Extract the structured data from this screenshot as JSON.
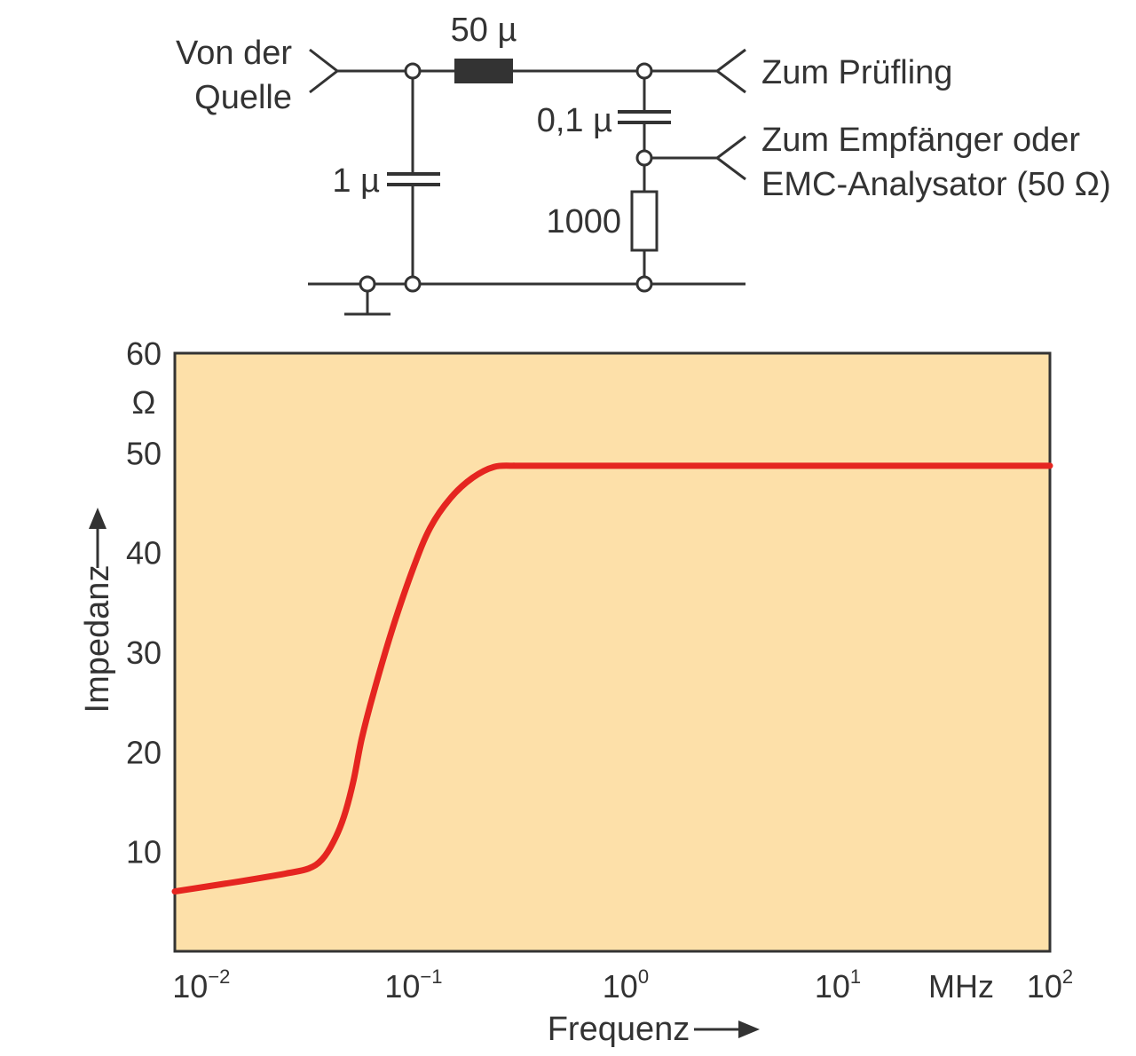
{
  "circuit": {
    "source_label_line1": "Von der",
    "source_label_line2": "Quelle",
    "inductor_label": "50 µ",
    "cap1_label": "1 µ",
    "cap2_label": "0,1 µ",
    "resistor_label": "1000",
    "dut_label": "Zum Prüfling",
    "receiver_label_line1": "Zum Empfänger oder",
    "receiver_label_line2": "EMC-Analysator (50 Ω)"
  },
  "chart_data": {
    "type": "line",
    "xscale": "log",
    "xlim": [
      0.0075,
      100
    ],
    "ylim": [
      0,
      60
    ],
    "xlabel": "Frequenz",
    "xunit": "MHz",
    "ylabel": "Impedanz",
    "yunit": "Ω",
    "yticks": [
      10,
      20,
      30,
      40,
      50,
      60
    ],
    "xticks": [
      {
        "value": 0.01,
        "base": "10",
        "exp": "−2"
      },
      {
        "value": 0.1,
        "base": "10",
        "exp": "−1"
      },
      {
        "value": 1,
        "base": "10",
        "exp": "0"
      },
      {
        "value": 10,
        "base": "10",
        "exp": "1"
      },
      {
        "value": 100,
        "base": "10",
        "exp": "2"
      }
    ],
    "background": "#fde0a9",
    "line_color": "#e52520",
    "series": [
      {
        "x": [
          0.0075,
          0.015,
          0.025,
          0.032,
          0.037,
          0.042,
          0.047,
          0.052,
          0.057,
          0.065,
          0.08,
          0.1,
          0.12,
          0.15,
          0.19,
          0.24,
          0.3,
          0.32,
          1,
          10,
          100
        ],
        "y": [
          6,
          7,
          7.8,
          8.3,
          9.2,
          11,
          13.5,
          17,
          21.3,
          26,
          32.5,
          38.5,
          42.5,
          45.5,
          47.5,
          48.6,
          48.7,
          48.7,
          48.7,
          48.7,
          48.7
        ]
      }
    ]
  }
}
